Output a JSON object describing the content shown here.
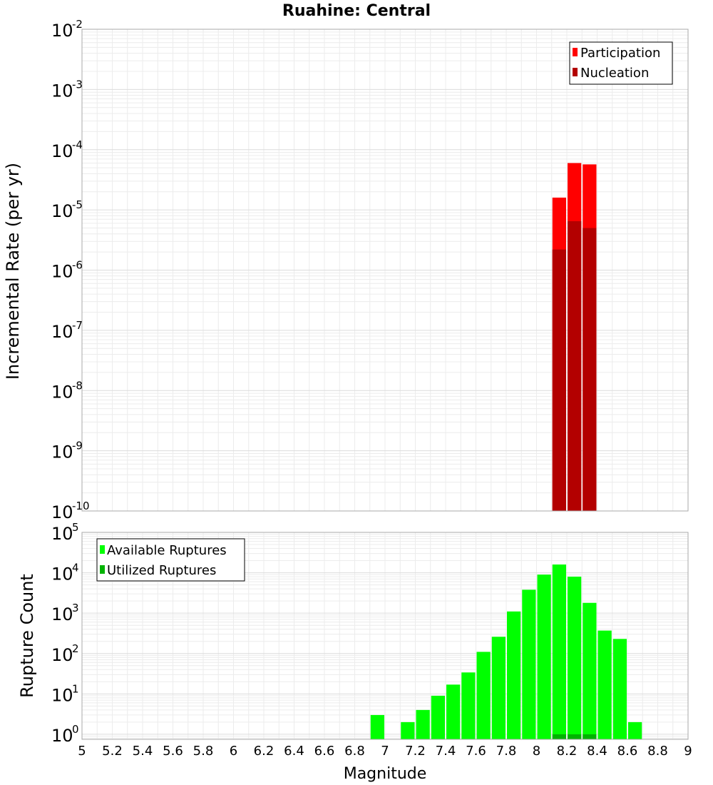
{
  "title": "Ruahine: Central",
  "chart_data": [
    {
      "type": "bar",
      "name": "rate-panel",
      "yscale": "log",
      "ylim": [
        1e-10,
        0.01
      ],
      "xlim": [
        5,
        9
      ],
      "xlabel": "Magnitude",
      "ylabel": "Incremental Rate (per yr)",
      "y_ticks": [
        {
          "base": "10",
          "exp": "-10"
        },
        {
          "base": "10",
          "exp": "-9"
        },
        {
          "base": "10",
          "exp": "-8"
        },
        {
          "base": "10",
          "exp": "-7"
        },
        {
          "base": "10",
          "exp": "-6"
        },
        {
          "base": "10",
          "exp": "-5"
        },
        {
          "base": "10",
          "exp": "-4"
        },
        {
          "base": "10",
          "exp": "-3"
        },
        {
          "base": "10",
          "exp": "-2"
        }
      ],
      "legend": {
        "position": "top-right",
        "entries": [
          "Participation",
          "Nucleation"
        ]
      },
      "series": [
        {
          "name": "Participation",
          "color": "#ff0000",
          "x": [
            8.15,
            8.25,
            8.35
          ],
          "values": [
            1.6e-05,
            6e-05,
            5.7e-05
          ]
        },
        {
          "name": "Nucleation",
          "color": "#b30000",
          "x": [
            8.15,
            8.25,
            8.35
          ],
          "values": [
            2.2e-06,
            6.5e-06,
            5e-06
          ]
        }
      ]
    },
    {
      "type": "bar",
      "name": "count-panel",
      "yscale": "log",
      "ylim": [
        0.75,
        100000
      ],
      "xlim": [
        5,
        9
      ],
      "xlabel": "Magnitude",
      "ylabel": "Rupture Count",
      "y_ticks": [
        {
          "base": "10",
          "exp": "0"
        },
        {
          "base": "10",
          "exp": "1"
        },
        {
          "base": "10",
          "exp": "2"
        },
        {
          "base": "10",
          "exp": "3"
        },
        {
          "base": "10",
          "exp": "4"
        },
        {
          "base": "10",
          "exp": "5"
        }
      ],
      "x_ticks": [
        "5",
        "5.2",
        "5.4",
        "5.6",
        "5.8",
        "6",
        "6.2",
        "6.4",
        "6.6",
        "6.8",
        "7",
        "7.2",
        "7.4",
        "7.6",
        "7.8",
        "8",
        "8.2",
        "8.4",
        "8.6",
        "8.8",
        "9"
      ],
      "legend": {
        "position": "top-left",
        "entries": [
          "Available Ruptures",
          "Utilized Ruptures"
        ]
      },
      "series": [
        {
          "name": "Available Ruptures",
          "color": "#00ff00",
          "x": [
            6.95,
            7.15,
            7.25,
            7.35,
            7.45,
            7.55,
            7.65,
            7.75,
            7.85,
            7.95,
            8.05,
            8.15,
            8.25,
            8.35,
            8.45,
            8.55,
            8.65
          ],
          "values": [
            3,
            2,
            4,
            9,
            17,
            34,
            110,
            260,
            1100,
            3800,
            9000,
            16000,
            8000,
            1800,
            370,
            230,
            2
          ]
        },
        {
          "name": "Utilized Ruptures",
          "color": "#00b300",
          "x": [
            8.15,
            8.25,
            8.35
          ],
          "values": [
            1,
            1,
            1
          ]
        }
      ]
    }
  ]
}
